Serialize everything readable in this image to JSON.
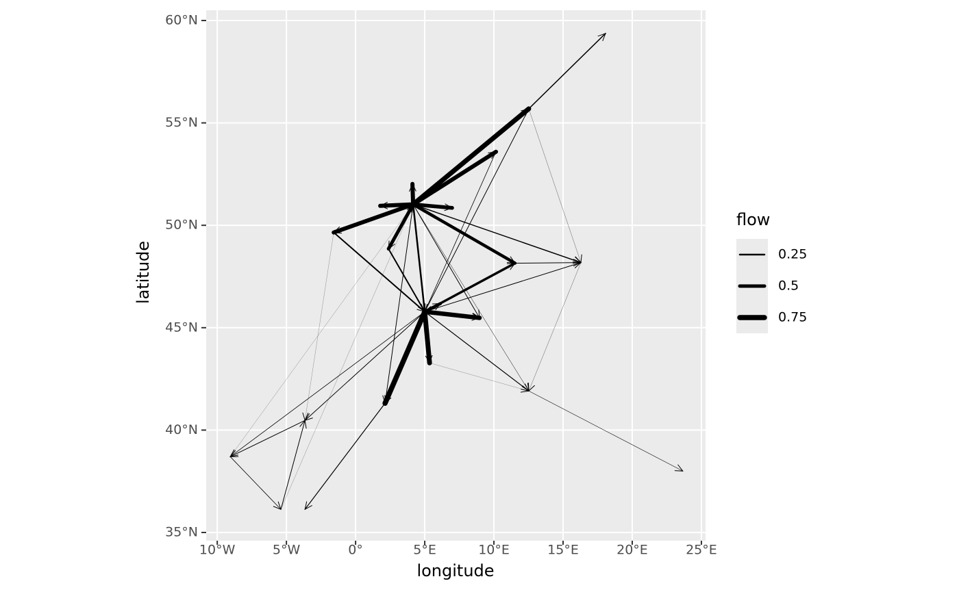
{
  "chart_data": {
    "type": "flow",
    "x_label": "longitude",
    "y_label": "latitude",
    "xlim": [
      -10.8,
      25.3
    ],
    "ylim": [
      34.6,
      60.5
    ],
    "xticks": [
      {
        "value": -10,
        "label": "10°W"
      },
      {
        "value": -5,
        "label": "5°W"
      },
      {
        "value": 0,
        "label": "0°"
      },
      {
        "value": 5,
        "label": "5°E"
      },
      {
        "value": 10,
        "label": "10°E"
      },
      {
        "value": 15,
        "label": "15°E"
      },
      {
        "value": 20,
        "label": "20°E"
      },
      {
        "value": 25,
        "label": "25°E"
      }
    ],
    "yticks": [
      {
        "value": 35,
        "label": "35°N"
      },
      {
        "value": 40,
        "label": "40°N"
      },
      {
        "value": 45,
        "label": "45°N"
      },
      {
        "value": 50,
        "label": "50°N"
      },
      {
        "value": 55,
        "label": "55°N"
      },
      {
        "value": 60,
        "label": "60°N"
      }
    ],
    "grid": true,
    "color": "#000000",
    "legend_title": "flow",
    "legend_position": "right",
    "legend_breaks": [
      0.25,
      0.5,
      0.75
    ],
    "x": [
      4.16,
      4.16,
      4.16,
      4.16,
      4.16,
      4.16,
      4.16,
      4.16,
      5.0,
      5.0,
      5.0,
      5.0,
      5.0,
      12.52,
      -1.58,
      11.53,
      4.16,
      5.0,
      5.0,
      5.0,
      2.13,
      -3.66,
      -9.06,
      -5.4,
      5.0,
      12.52,
      4.16,
      12.52,
      10.15,
      16.29,
      12.52,
      2.38,
      4.16,
      4.16,
      -5.4,
      -9.06,
      -1.58,
      5.35,
      4.16
    ],
    "y": [
      51.02,
      51.02,
      51.02,
      51.02,
      51.02,
      51.02,
      51.02,
      51.02,
      45.78,
      45.78,
      45.78,
      45.78,
      45.78,
      55.69,
      49.65,
      48.15,
      51.02,
      45.78,
      45.78,
      45.78,
      41.31,
      40.47,
      38.7,
      36.13,
      45.78,
      41.91,
      51.02,
      55.69,
      53.59,
      48.18,
      55.69,
      48.85,
      51.02,
      51.02,
      36.13,
      38.7,
      49.65,
      43.28,
      51.02
    ],
    "xend": [
      12.52,
      10.15,
      4.11,
      1.78,
      6.98,
      -1.58,
      2.38,
      11.53,
      8.96,
      5.35,
      2.13,
      6.14,
      11.53,
      18.07,
      5.0,
      16.29,
      16.29,
      16.29,
      -3.66,
      -9.06,
      -3.66,
      -9.06,
      -5.4,
      -3.66,
      12.52,
      23.66,
      12.52,
      5.0,
      5.0,
      12.52,
      16.29,
      5.0,
      2.13,
      8.96,
      4.16,
      4.16,
      -3.66,
      12.52,
      5.0
    ],
    "yend": [
      55.69,
      53.59,
      52.02,
      50.95,
      50.85,
      49.65,
      48.85,
      48.15,
      45.48,
      43.28,
      41.31,
      46.18,
      48.15,
      59.37,
      45.78,
      48.18,
      48.18,
      48.18,
      40.47,
      38.7,
      36.13,
      38.7,
      36.13,
      40.47,
      41.91,
      38.0,
      41.91,
      45.78,
      45.78,
      41.91,
      48.18,
      45.78,
      41.31,
      45.48,
      51.02,
      51.02,
      40.47,
      41.91,
      45.78
    ],
    "values": [
      0.7,
      0.6,
      0.6,
      0.6,
      0.55,
      0.6,
      0.5,
      0.45,
      0.65,
      0.7,
      0.75,
      0.45,
      0.35,
      0.15,
      0.2,
      0.1,
      0.15,
      0.1,
      0.1,
      0.08,
      0.12,
      0.1,
      0.08,
      0.1,
      0.12,
      0.06,
      0.05,
      0.1,
      0.08,
      0.03,
      0.03,
      0.2,
      0.1,
      0.1,
      0.02,
      0.02,
      0.02,
      0.02,
      0.25
    ]
  }
}
